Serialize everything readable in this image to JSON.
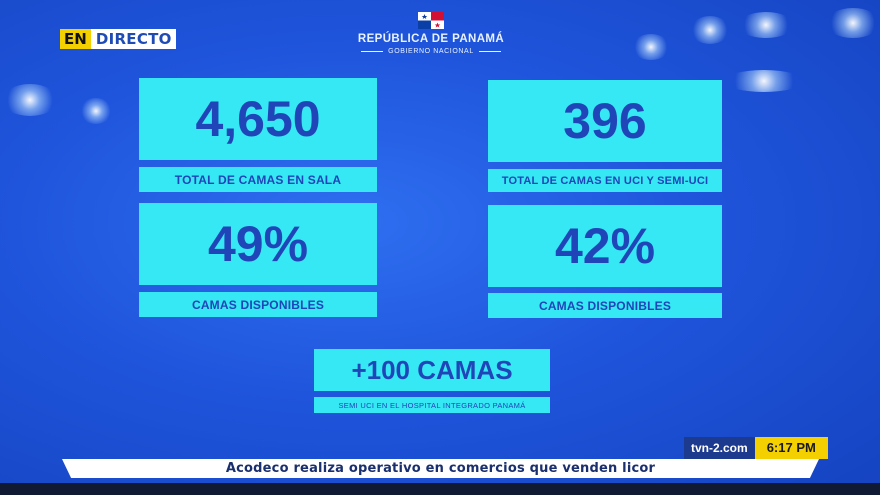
{
  "live_badge": {
    "en": "EN",
    "text": "DIRECTO"
  },
  "header": {
    "title": "REPÚBLICA DE PANAMÁ",
    "subtitle": "GOBIERNO NACIONAL",
    "flag_icon": "panama-flag-icon"
  },
  "stats": {
    "sala": {
      "value": "4,650",
      "label": "TOTAL DE CAMAS EN SALA"
    },
    "uci": {
      "value": "396",
      "label": "TOTAL DE CAMAS EN UCI Y SEMI-UCI"
    },
    "sala_disp": {
      "value": "49%",
      "label": "CAMAS DISPONIBLES"
    },
    "uci_disp": {
      "value": "42%",
      "label": "CAMAS DISPONIBLES"
    },
    "extra": {
      "value": "+100 CAMAS",
      "label": "SEMI UCI EN EL HOSPITAL INTEGRADO PANAMÁ"
    }
  },
  "footer": {
    "site": "tvn-2.com",
    "time": "6:17 PM",
    "ticker": "Acodeco realiza operativo en comercios que venden licor"
  },
  "colors": {
    "background": "#1f55dc",
    "card": "#35e8f3",
    "card_text": "#1f45b8",
    "live_yellow": "#f5d000"
  }
}
